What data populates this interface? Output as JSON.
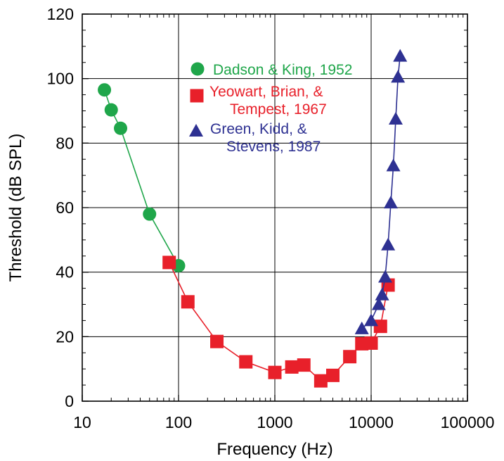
{
  "chart_data": {
    "type": "scatter",
    "title": "",
    "xlabel": "Frequency (Hz)",
    "ylabel": "Threshold (dB SPL)",
    "x_scale": "log",
    "xlim": [
      10,
      100000
    ],
    "ylim": [
      0,
      120
    ],
    "x_ticks": [
      {
        "value": 10,
        "label": "10"
      },
      {
        "value": 100,
        "label": "100"
      },
      {
        "value": 1000,
        "label": "1000"
      },
      {
        "value": 10000,
        "label": "10000"
      },
      {
        "value": 100000,
        "label": "100000"
      }
    ],
    "y_ticks": [
      {
        "value": 0,
        "label": "0"
      },
      {
        "value": 20,
        "label": "20"
      },
      {
        "value": 40,
        "label": "40"
      },
      {
        "value": 60,
        "label": "60"
      },
      {
        "value": 80,
        "label": "80"
      },
      {
        "value": 100,
        "label": "100"
      },
      {
        "value": 120,
        "label": "120"
      }
    ],
    "grid": true,
    "legend_position": "top-center",
    "series": [
      {
        "name_lines": [
          "Dadson & King, 1952"
        ],
        "marker": "circle",
        "color": "#1fa64a",
        "x": [
          17,
          20,
          25,
          50,
          100
        ],
        "y": [
          96.5,
          90.3,
          84.6,
          58,
          42
        ]
      },
      {
        "name_lines": [
          "Yeowart, Brian, &",
          "Tempest, 1967"
        ],
        "marker": "square",
        "color": "#e8202a",
        "x": [
          80,
          125,
          250,
          500,
          1000,
          1500,
          2000,
          3000,
          4000,
          6000,
          8000,
          10000,
          12500,
          15000
        ],
        "y": [
          43,
          30.8,
          18.5,
          12.2,
          8.9,
          10.6,
          11.2,
          6.3,
          8,
          13.8,
          17.8,
          18,
          23.2,
          36
        ]
      },
      {
        "name_lines": [
          "Green, Kidd, &",
          "Stevens, 1987"
        ],
        "marker": "triangle",
        "color": "#2e3192",
        "x": [
          8000,
          10000,
          12000,
          13000,
          14000,
          15000,
          16000,
          17000,
          18000,
          19000,
          20000
        ],
        "y": [
          22.5,
          25,
          30,
          33,
          38.5,
          48.5,
          61.5,
          73,
          87.5,
          100.5,
          107
        ]
      }
    ]
  }
}
